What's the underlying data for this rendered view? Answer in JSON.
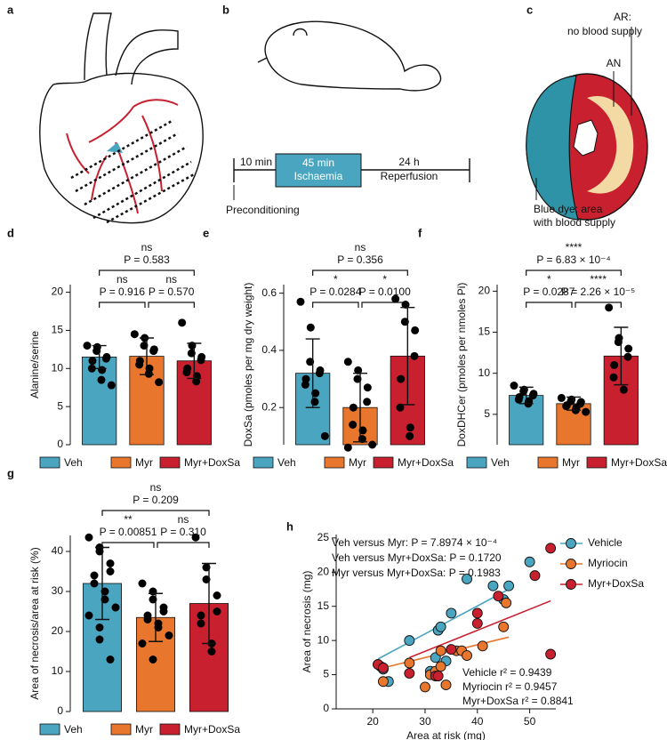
{
  "panel_a": {
    "label": "a"
  },
  "panel_b": {
    "label": "b",
    "pre": "10 min",
    "block": [
      "45 min",
      "Ischaemia"
    ],
    "post": [
      "24 h",
      "Reperfusion"
    ],
    "start": "Preconditioning"
  },
  "panel_c": {
    "label": "c",
    "ar": [
      "AR:",
      "no blood supply"
    ],
    "an": "AN",
    "dye": [
      "Blue dye: area",
      "with blood supply"
    ]
  },
  "chart_data": [
    {
      "type": "bar",
      "panel": "d",
      "ylabel": "Alanine/serine",
      "categories": [
        "Veh",
        "Myr",
        "Myr+DoxSa"
      ],
      "colors": [
        "#4aa6c0",
        "#e8762c",
        "#c8202f"
      ],
      "values": [
        11.5,
        11.6,
        11.0
      ],
      "errors": [
        1.5,
        2.4,
        2.3
      ],
      "points": [
        [
          13,
          12.8,
          12.3,
          11.5,
          11.3,
          11,
          10,
          9.8,
          8.5,
          7.8
        ],
        [
          14.5,
          14,
          13,
          12.5,
          12.3,
          11,
          10.5,
          10,
          9.3,
          8.2
        ],
        [
          16,
          13,
          12,
          11.5,
          11.1,
          10,
          9.5,
          9,
          8.3
        ]
      ],
      "ylim": [
        0,
        21
      ],
      "yticks": [
        0,
        5,
        10,
        15,
        20
      ],
      "comparisons": [
        {
          "stars": "ns",
          "p": "P = 0.916"
        },
        {
          "stars": "ns",
          "p": "P = 0.570"
        },
        {
          "stars": "ns",
          "p": "P = 0.583"
        }
      ]
    },
    {
      "type": "bar",
      "panel": "e",
      "ylabel": "DoxSa (pmoles per mg dry weight)",
      "categories": [
        "Veh",
        "Myr",
        "Myr+DoxSa"
      ],
      "colors": [
        "#4aa6c0",
        "#e8762c",
        "#c8202f"
      ],
      "values": [
        0.32,
        0.2,
        0.38
      ],
      "errors": [
        0.12,
        0.12,
        0.17
      ],
      "points": [
        [
          0.57,
          0.48,
          0.36,
          0.33,
          0.32,
          0.3,
          0.28,
          0.25,
          0.22,
          0.1
        ],
        [
          0.36,
          0.33,
          0.3,
          0.27,
          0.22,
          0.2,
          0.14,
          0.12,
          0.09,
          0.07,
          0.06
        ],
        [
          0.58,
          0.56,
          0.5,
          0.47,
          0.38,
          0.3,
          0.2,
          0.13,
          0.1
        ]
      ],
      "ylim": [
        0.07,
        0.63
      ],
      "yticks": [
        0.2,
        0.4,
        0.6
      ],
      "comparisons": [
        {
          "stars": "*",
          "p": "P = 0.0284"
        },
        {
          "stars": "*",
          "p": "P = 0.0100"
        },
        {
          "stars": "ns",
          "p": "P = 0.356"
        }
      ]
    },
    {
      "type": "bar",
      "panel": "f",
      "ylabel": "DoxDHCer (pmoles per nmoles Pi)",
      "categories": [
        "Veh",
        "Myr",
        "Myr+DoxSa"
      ],
      "colors": [
        "#4aa6c0",
        "#e8762c",
        "#c8202f"
      ],
      "values": [
        7.3,
        6.3,
        12.1
      ],
      "errors": [
        1.0,
        0.8,
        3.5
      ],
      "points": [
        [
          8.5,
          8,
          7.8,
          7.5,
          7.3,
          7.1,
          6.8,
          6.6,
          6.3
        ],
        [
          7,
          6.8,
          6.6,
          6.5,
          6.3,
          6.1,
          6,
          5.8,
          5.5,
          5.3
        ],
        [
          18,
          14.3,
          13.8,
          13,
          12,
          11,
          9.5,
          8
        ]
      ],
      "ylim": [
        1.3,
        20.8
      ],
      "yticks": [
        5,
        10,
        15,
        20
      ],
      "comparisons": [
        {
          "stars": "*",
          "p": "P = 0.0287"
        },
        {
          "stars": "****",
          "p": "P = 2.26 × 10⁻⁵"
        },
        {
          "stars": "****",
          "p": "P = 6.83 × 10⁻⁴"
        }
      ]
    },
    {
      "type": "bar",
      "panel": "g",
      "ylabel": "Area of necrosis/area at risk (%)",
      "categories": [
        "Veh",
        "Myr",
        "Myr+DoxSa"
      ],
      "colors": [
        "#4aa6c0",
        "#e8762c",
        "#c8202f"
      ],
      "values": [
        32,
        23.5,
        27
      ],
      "errors": [
        9,
        6,
        10
      ],
      "points": [
        [
          43.5,
          41,
          40,
          37,
          35,
          34,
          32,
          30,
          28,
          26,
          24,
          21,
          18,
          13
        ],
        [
          32,
          30,
          28,
          26,
          25,
          24,
          23,
          22,
          21,
          19,
          17,
          13
        ],
        [
          43.5,
          36,
          33,
          29,
          25,
          24,
          22,
          17,
          15
        ]
      ],
      "ylim": [
        0,
        44
      ],
      "yticks": [
        0,
        10,
        20,
        30,
        40
      ],
      "comparisons": [
        {
          "stars": "**",
          "p": "P = 0.00851"
        },
        {
          "stars": "ns",
          "p": "P = 0.310"
        },
        {
          "stars": "ns",
          "p": "P = 0.209"
        }
      ]
    },
    {
      "type": "scatter",
      "panel": "h",
      "xlabel": "Area at risk (mg)",
      "ylabel": "Area of necrosis (mg)",
      "xlim": [
        13,
        55
      ],
      "ylim": [
        0,
        25.5
      ],
      "xticks": [
        20,
        30,
        40,
        50
      ],
      "yticks": [
        0,
        5,
        10,
        15,
        20,
        25
      ],
      "annotations": [
        "Veh versus Myr: P = 7.8974 × 10⁻⁴",
        "Veh versus Myr+DoxSa: P = 0.1720",
        "Myr versus Myr+DoxSa: P = 0.1983"
      ],
      "fit_labels": [
        "Vehicle r² = 0.9439",
        "Myriocin r² = 0.9457",
        "Myr+DoxSa r² = 0.8841"
      ],
      "series": [
        {
          "name": "Vehicle",
          "color": "#4aa6c0",
          "x": [
            21,
            21.5,
            22,
            23,
            27,
            31,
            32,
            32.5,
            33,
            35,
            38,
            43,
            45,
            46,
            50,
            34
          ],
          "values": [
            6.5,
            6.2,
            5.8,
            4,
            10,
            5.5,
            7.5,
            11.5,
            12,
            14,
            19,
            18,
            16,
            18,
            21.5,
            7
          ],
          "fit": {
            "x": [
              21,
              46
            ],
            "y": [
              7.3,
              17.5
            ]
          }
        },
        {
          "name": "Myriocin",
          "color": "#e8762c",
          "x": [
            22,
            27,
            30,
            31,
            32,
            33,
            33,
            34,
            36,
            37,
            38,
            41,
            45,
            45.5
          ],
          "values": [
            4,
            6.7,
            3.2,
            5,
            5.5,
            6.2,
            8.5,
            3.5,
            8.5,
            8.5,
            7.8,
            9.2,
            12,
            15.5
          ],
          "fit": {
            "x": [
              22,
              46
            ],
            "y": [
              6,
              10.5
            ]
          }
        },
        {
          "name": "Myr+DoxSa",
          "color": "#c8202f",
          "x": [
            21,
            22,
            27,
            32,
            32.5,
            35,
            40,
            40,
            44,
            51,
            54,
            54
          ],
          "values": [
            6.5,
            6,
            5.2,
            4.8,
            4.8,
            8.7,
            14,
            12.5,
            16.5,
            19.5,
            23.5,
            8
          ],
          "fit": {
            "x": [
              27,
              54
            ],
            "y": [
              7.5,
              15.8
            ]
          }
        }
      ]
    }
  ]
}
